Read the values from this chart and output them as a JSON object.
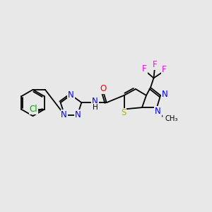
{
  "background_color": "#e8e8e8",
  "figsize": [
    3.0,
    3.0
  ],
  "dpi": 100,
  "atom_colors": {
    "Cl": "#00aa00",
    "N": "#0000ff",
    "O": "#ff0000",
    "S": "#bbaa00",
    "F": "#ff00ff",
    "C": "#000000"
  },
  "bond_color": "#000000",
  "bond_lw": 1.3
}
